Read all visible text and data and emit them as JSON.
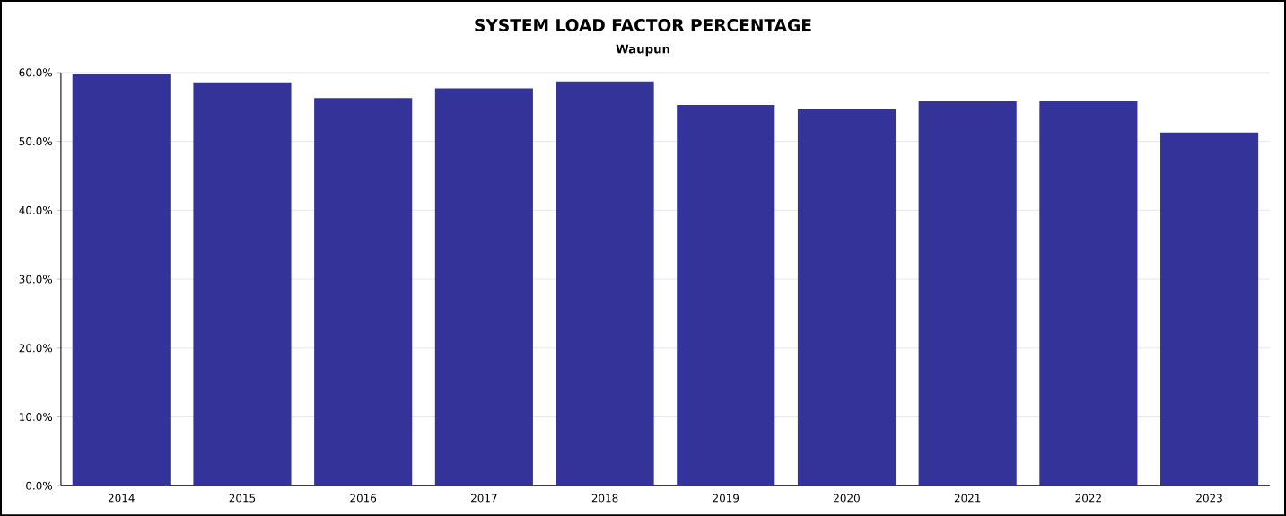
{
  "chart_data": {
    "type": "bar",
    "title": "SYSTEM LOAD FACTOR PERCENTAGE",
    "subtitle": "Waupun",
    "categories": [
      "2014",
      "2015",
      "2016",
      "2017",
      "2018",
      "2019",
      "2020",
      "2021",
      "2022",
      "2023"
    ],
    "values": [
      59.8,
      58.6,
      56.3,
      57.7,
      58.7,
      55.3,
      54.7,
      55.8,
      55.9,
      51.3
    ],
    "color": "#333399",
    "ylim": [
      0,
      60
    ],
    "yticks": [
      {
        "value": 0,
        "label": "0.0%"
      },
      {
        "value": 10,
        "label": "10.0%"
      },
      {
        "value": 20,
        "label": "20.0%"
      },
      {
        "value": 30,
        "label": "30.0%"
      },
      {
        "value": 40,
        "label": "40.0%"
      },
      {
        "value": 50,
        "label": "50.0%"
      },
      {
        "value": 60,
        "label": "60.0%"
      }
    ],
    "grid": "y"
  }
}
